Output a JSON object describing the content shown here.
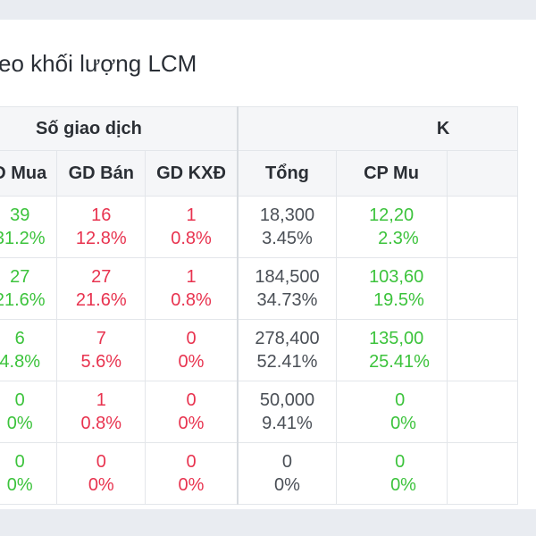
{
  "title": "eo khối lượng LCM",
  "group_headers": {
    "transactions": "Số giao dịch",
    "volume": "K"
  },
  "columns": {
    "buy": "D Mua",
    "sell": "GD Bán",
    "undetermined": "GD KXĐ",
    "total": "Tổng",
    "cp_buy": "CP Mu"
  },
  "rows": [
    {
      "buy": "39",
      "buy_pct": "31.2%",
      "sell": "16",
      "sell_pct": "12.8%",
      "kxd": "1",
      "kxd_pct": "0.8%",
      "total": "18,300",
      "total_pct": "3.45%",
      "cp_buy": "12,20",
      "cp_buy_pct": "2.3%"
    },
    {
      "buy": "27",
      "buy_pct": "21.6%",
      "sell": "27",
      "sell_pct": "21.6%",
      "kxd": "1",
      "kxd_pct": "0.8%",
      "total": "184,500",
      "total_pct": "34.73%",
      "cp_buy": "103,60",
      "cp_buy_pct": "19.5%"
    },
    {
      "buy": "6",
      "buy_pct": "4.8%",
      "sell": "7",
      "sell_pct": "5.6%",
      "kxd": "0",
      "kxd_pct": "0%",
      "total": "278,400",
      "total_pct": "52.41%",
      "cp_buy": "135,00",
      "cp_buy_pct": "25.41%"
    },
    {
      "buy": "0",
      "buy_pct": "0%",
      "sell": "1",
      "sell_pct": "0.8%",
      "kxd": "0",
      "kxd_pct": "0%",
      "total": "50,000",
      "total_pct": "9.41%",
      "cp_buy": "0",
      "cp_buy_pct": "0%"
    },
    {
      "buy": "0",
      "buy_pct": "0%",
      "sell": "0",
      "sell_pct": "0%",
      "kxd": "0",
      "kxd_pct": "0%",
      "total": "0",
      "total_pct": "0%",
      "cp_buy": "0",
      "cp_buy_pct": "0%"
    }
  ],
  "colors": {
    "buy": "#3cc33c",
    "sell": "#e8334f",
    "neutral": "#4a4f56"
  }
}
